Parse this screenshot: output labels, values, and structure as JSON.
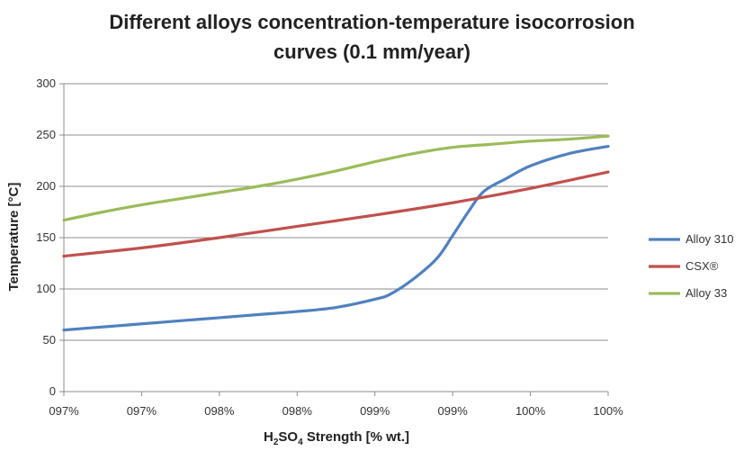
{
  "chart_data": {
    "type": "line",
    "title_line1": "Different alloys concentration-temperature isocorrosion",
    "title_line2": "curves (0.1 mm/year)",
    "xlabel_main": "H",
    "xlabel_sub1": "2",
    "xlabel_mid": "SO",
    "xlabel_sub2": "4",
    "xlabel_rest": " Strength [% wt.]",
    "ylabel": "Temperature [°C]",
    "x_tick_labels": [
      "097%",
      "097%",
      "098%",
      "098%",
      "099%",
      "099%",
      "100%",
      "100%"
    ],
    "x_tick_values": [
      96.5,
      97.0,
      97.5,
      98.0,
      98.5,
      99.0,
      99.5,
      100.0
    ],
    "xlim": [
      96.5,
      100.0
    ],
    "y_ticks": [
      0,
      50,
      100,
      150,
      200,
      250,
      300
    ],
    "y_tick_labels": [
      "0",
      "50",
      "100",
      "150",
      "200",
      "250",
      "300"
    ],
    "ylim": [
      0,
      300
    ],
    "grid": true,
    "legend_position": "right",
    "series": [
      {
        "name": "Alloy 310",
        "color": "#4f81bd",
        "points": [
          [
            96.5,
            60
          ],
          [
            96.75,
            63
          ],
          [
            97.0,
            66
          ],
          [
            97.25,
            69
          ],
          [
            97.5,
            72
          ],
          [
            97.75,
            75
          ],
          [
            98.0,
            78
          ],
          [
            98.25,
            82
          ],
          [
            98.5,
            90
          ],
          [
            98.6,
            95
          ],
          [
            98.75,
            110
          ],
          [
            98.9,
            130
          ],
          [
            99.0,
            152
          ],
          [
            99.1,
            175
          ],
          [
            99.2,
            195
          ],
          [
            99.35,
            208
          ],
          [
            99.5,
            220
          ],
          [
            99.75,
            232
          ],
          [
            100.0,
            239
          ]
        ]
      },
      {
        "name": "CSX®",
        "color": "#c0504d",
        "points": [
          [
            96.5,
            132
          ],
          [
            97.0,
            140
          ],
          [
            97.5,
            150
          ],
          [
            98.0,
            161
          ],
          [
            98.5,
            172
          ],
          [
            99.0,
            184
          ],
          [
            99.5,
            198
          ],
          [
            100.0,
            214
          ]
        ]
      },
      {
        "name": "Alloy 33",
        "color": "#9bbb59",
        "points": [
          [
            96.5,
            167
          ],
          [
            96.75,
            175
          ],
          [
            97.0,
            182
          ],
          [
            97.25,
            188
          ],
          [
            97.5,
            194
          ],
          [
            97.75,
            200
          ],
          [
            98.0,
            207
          ],
          [
            98.25,
            215
          ],
          [
            98.5,
            224
          ],
          [
            98.75,
            232
          ],
          [
            99.0,
            238
          ],
          [
            99.25,
            241
          ],
          [
            99.5,
            244
          ],
          [
            99.75,
            246
          ],
          [
            100.0,
            249
          ]
        ]
      }
    ]
  }
}
